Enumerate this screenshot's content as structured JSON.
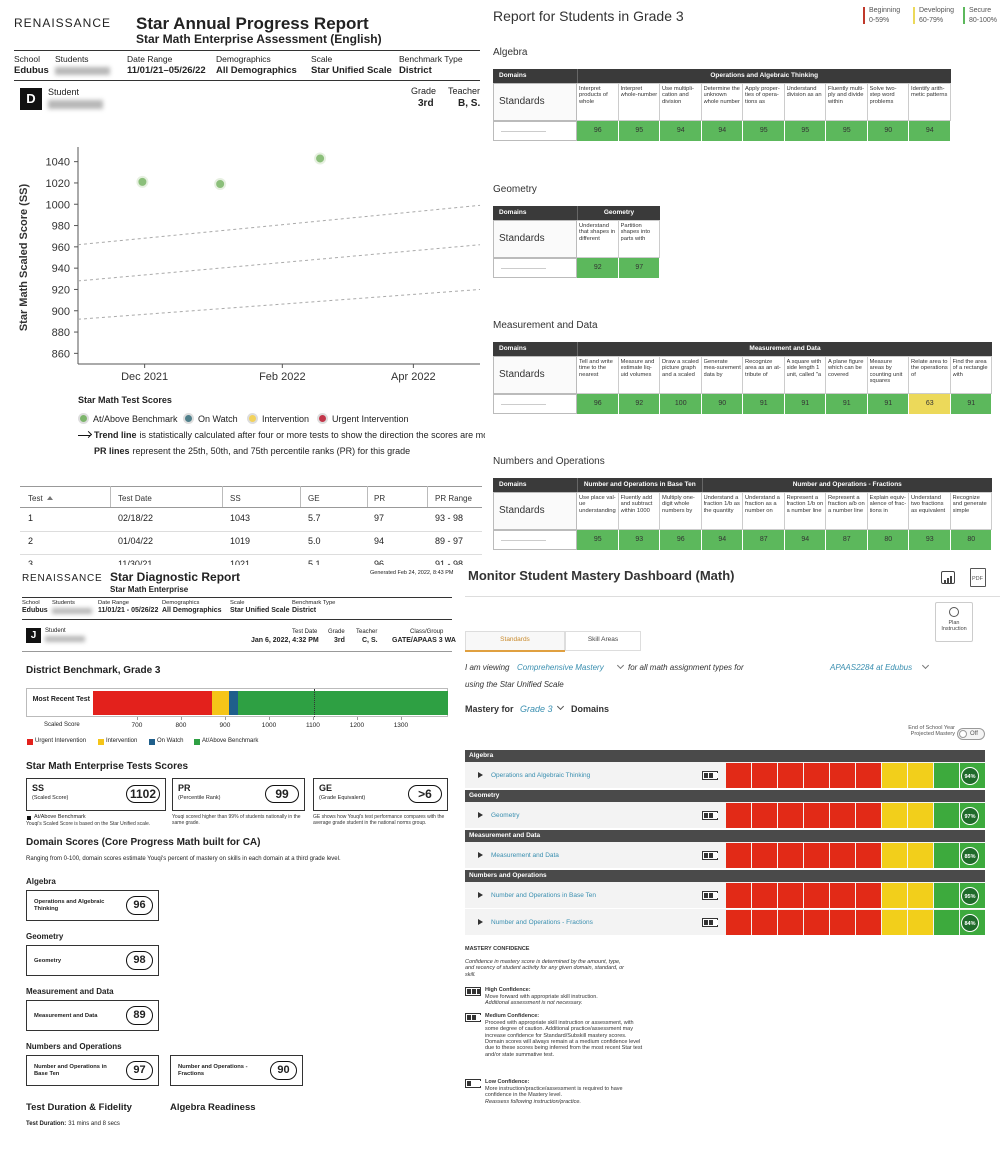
{
  "annual_report": {
    "brand": "RENAISSANCE",
    "title": "Star Annual Progress Report",
    "subtitle": "Star Math Enterprise Assessment (English)",
    "fields": [
      {
        "label": "School",
        "value": "Edubus"
      },
      {
        "label": "Students"
      },
      {
        "label": "Date Range",
        "value": "11/01/21–05/26/22"
      },
      {
        "label": "Demographics",
        "value": "All Demographics"
      },
      {
        "label": "Scale",
        "value": "Star Unified Scale"
      },
      {
        "label": "Benchmark Type",
        "value": "District"
      }
    ],
    "badge": "D",
    "student_label": "Student",
    "grade_label": "Grade",
    "grade": "3rd",
    "teacher_label": "Teacher",
    "teacher": "B, S.",
    "legend_title": "Star Math Test Scores",
    "legend": [
      {
        "label": "At/Above Benchmark",
        "color": "#7db56c"
      },
      {
        "label": "On Watch",
        "color": "#4f7f8a"
      },
      {
        "label": "Intervention",
        "color": "#f2d25c"
      },
      {
        "label": "Urgent Intervention",
        "color": "#c2364a"
      }
    ],
    "trend_note": {
      "bold": "Trend line",
      "text": "is statistically calculated after four or more tests to show the direction the scores are movi"
    },
    "pr_note": {
      "bold": "PR lines",
      "text": "represent the 25th, 50th, and 75th percentile ranks (PR) for this grade"
    },
    "table": {
      "headers": [
        "Test",
        "Test Date",
        "SS",
        "GE",
        "PR",
        "PR Range"
      ],
      "rows": [
        [
          "1",
          "02/18/22",
          "1043",
          "5.7",
          "97",
          "93 - 98"
        ],
        [
          "2",
          "01/04/22",
          "1019",
          "5.0",
          "94",
          "89 - 97"
        ],
        [
          "3",
          "11/30/21",
          "1021",
          "5.1",
          "96",
          "91 - 98"
        ]
      ]
    }
  },
  "chart_data": {
    "type": "scatter",
    "y_label": "Star Math Scaled Score (SS)",
    "x": [
      "2021-11-30",
      "2022-01-04",
      "2022-02-18"
    ],
    "values": [
      1021,
      1019,
      1043
    ],
    "color": "#8bbf7a",
    "xlim": [
      "2021-11",
      "2022-05"
    ],
    "xticks": [
      {
        "value": "2021-12",
        "label": "Dec 2021"
      },
      {
        "value": "2022-02",
        "label": "Feb 2022"
      },
      {
        "value": "2022-04",
        "label": "Apr 2022"
      }
    ],
    "ylim": [
      850,
      1050
    ],
    "yticks": [
      860,
      880,
      900,
      920,
      940,
      960,
      980,
      1000,
      1020,
      1040
    ],
    "pr_lines": [
      {
        "values": [
          892,
          920
        ]
      },
      {
        "values": [
          928,
          962
        ]
      },
      {
        "values": [
          962,
          999
        ]
      }
    ]
  },
  "grade_report": {
    "title": "Report for Students in Grade 3",
    "legend": [
      {
        "label": "Beginning",
        "range": "0-59%",
        "color": "#c0392b"
      },
      {
        "label": "Developing",
        "range": "60-79%",
        "color": "#ecd95a"
      },
      {
        "label": "Secure",
        "range": "80-100%",
        "color": "#5cb85c"
      }
    ],
    "domains_label": "Domains",
    "standards_label": "Standards",
    "sections": [
      {
        "title": "Algebra",
        "groups": [
          {
            "name": "Operations and Algebraic Thinking",
            "standards": [
              "Interpret products of whole",
              "Interpret whole-number",
              "Use multipli-cation and division",
              "Determine the unknown whole number",
              "Apply proper-ties of opera-tions as",
              "Understand division as an",
              "Fluently multi-ply and divide within",
              "Solve two-step word problems",
              "Identify arith-metic patterns"
            ],
            "scores": [
              96,
              95,
              94,
              94,
              95,
              95,
              95,
              90,
              94
            ]
          }
        ]
      },
      {
        "title": "Geometry",
        "groups": [
          {
            "name": "Geometry",
            "standards": [
              "Understand that shapes in different",
              "Partition shapes into parts with"
            ],
            "scores": [
              92,
              97
            ]
          }
        ]
      },
      {
        "title": "Measurement and Data",
        "groups": [
          {
            "name": "Measurement and Data",
            "standards": [
              "Tell and write time to the nearest",
              "Measure and estimate liq-uid volumes",
              "Draw a scaled picture graph and a scaled",
              "Generate mea-surement data by",
              "Recognize area as an at-tribute of",
              "A square with side length 1 unit, called \"a",
              "A plane figure which can be covered",
              "Measure areas by counting unit squares",
              "Relate area to the operations of",
              "Find the area of a rectangle with"
            ],
            "scores": [
              96,
              92,
              100,
              90,
              91,
              91,
              91,
              91,
              63,
              91
            ]
          }
        ]
      },
      {
        "title": "Numbers and Operations",
        "groups": [
          {
            "name": "Number and Operations in Base Ten",
            "standards": [
              "Use place val-ue understanding",
              "Fluently add and subtract within 1000",
              "Multiply one-digit whole numbers by"
            ],
            "scores": [
              95,
              93,
              96
            ]
          },
          {
            "name": "Number and Operations - Fractions",
            "standards": [
              "Understand a fraction 1/b as the quantity",
              "Understand a fraction as a number on",
              "Represent a fraction 1/b on a number line",
              "Represent a fraction a/b on a number line",
              "Explain equiv-alence of frac-tions in",
              "Understand two fractions as equivalent",
              "Recognize and generate simple"
            ],
            "scores": [
              94,
              87,
              94,
              87,
              80,
              93,
              80
            ]
          }
        ]
      }
    ]
  },
  "diagnostic_report": {
    "brand": "RENAISSANCE",
    "title": "Star Diagnostic Report",
    "subtitle": "Star Math Enterprise",
    "generated": "Generated Feb 24, 2022, 8:43 PM",
    "fields": [
      {
        "label": "School",
        "value": "Edubus"
      },
      {
        "label": "Students"
      },
      {
        "label": "Date Range",
        "value": "11/01/21 - 05/26/22"
      },
      {
        "label": "Demographics",
        "value": "All Demographics"
      },
      {
        "label": "Scale",
        "value": "Star Unified Scale"
      },
      {
        "label": "Benchmark Type",
        "value": "District"
      }
    ],
    "badge": "J",
    "student_label": "Student",
    "test_fields": [
      {
        "label": "Test Date",
        "value": "Jan 6, 2022, 4:32 PM"
      },
      {
        "label": "Grade",
        "value": "3rd"
      },
      {
        "label": "Teacher",
        "value": "C, S."
      },
      {
        "label": "Class/Group",
        "value": "GATE/APAAS 3 WA"
      }
    ],
    "benchmark": {
      "title": "District Benchmark, Grade 3",
      "row_label": "Most Recent Test",
      "axis_label": "Scaled Score",
      "xlim": [
        600,
        1407
      ],
      "xticks": [
        700,
        800,
        900,
        1000,
        1100,
        1200,
        1300
      ],
      "bands": [
        {
          "name": "Urgent Intervention",
          "color": "#e3211c",
          "to": 870
        },
        {
          "name": "Intervention",
          "color": "#f5c518",
          "to": 909
        },
        {
          "name": "On Watch",
          "color": "#1f5f8b",
          "to": 930
        },
        {
          "name": "At/Above Benchmark",
          "color": "#2ea043",
          "to": 1407
        }
      ]
    },
    "scores_title": "Star Math Enterprise Tests Scores",
    "scores": [
      {
        "label": "SS",
        "sublabel": "(Scaled Score)",
        "value": 1102,
        "status": "At/Above Benchmark",
        "note": "Youqi's Scaled Score is based on the Star Unified scale."
      },
      {
        "label": "PR",
        "sublabel": "(Percentile Rank)",
        "value": 99,
        "note": "Youqi scored higher than 99% of students nationally in the same grade."
      },
      {
        "label": "GE",
        "sublabel": "(Grade Equivalent)",
        "value": ">6",
        "note": "GE shows how Youqi's test performance compares with the average grade student in the national norms group."
      }
    ],
    "domain_title": "Domain Scores (Core Progress Math built for CA)",
    "domain_intro": "Ranging from 0-100, domain scores estimate Youqi's percent of mastery on skills in each domain at a third grade level.",
    "domains": [
      {
        "title": "Algebra",
        "items": [
          {
            "name": "Operations and Algebraic Thinking",
            "score": 96
          }
        ]
      },
      {
        "title": "Geometry",
        "items": [
          {
            "name": "Geometry",
            "score": 98
          }
        ]
      },
      {
        "title": "Measurement and Data",
        "items": [
          {
            "name": "Measurement and Data",
            "score": 89
          }
        ]
      },
      {
        "title": "Numbers and Operations",
        "items": [
          {
            "name": "Number and Operations in Base Ten",
            "score": 97
          },
          {
            "name": "Number and Operations - Fractions",
            "score": 90
          }
        ]
      }
    ],
    "duration_title": "Test Duration & Fidelity",
    "readiness_title": "Algebra Readiness",
    "duration_label": "Test Duration:",
    "duration": "31 mins and 8 secs"
  },
  "mastery_dashboard": {
    "title": "Monitor Student Mastery Dashboard (Math)",
    "pdf_label": "PDF",
    "plan_button": "Plan Instruction",
    "tabs": [
      "Standards",
      "Skill Areas"
    ],
    "viewing": {
      "prefix": "I am viewing",
      "mastery_type": "Comprehensive Mastery",
      "middle": "for all math assignment types for",
      "class": "APAAS2284 at Edubus",
      "suffix": "using the Star Unified Scale"
    },
    "mastery_for": "Mastery for",
    "grade": "Grade 3",
    "domains_label": "Domains",
    "projection_label": "End of School Year Projected Mastery",
    "toggle": "Off",
    "groups": [
      {
        "name": "Algebra",
        "rows": [
          {
            "name": "Operations and Algebraic Thinking",
            "mastery": 94,
            "mastery_label": "94%"
          }
        ]
      },
      {
        "name": "Geometry",
        "rows": [
          {
            "name": "Geometry",
            "mastery": 97,
            "mastery_label": "97%"
          }
        ]
      },
      {
        "name": "Measurement and Data",
        "rows": [
          {
            "name": "Measurement and Data",
            "mastery": 85,
            "mastery_label": "85%"
          }
        ]
      },
      {
        "name": "Numbers and Operations",
        "rows": [
          {
            "name": "Number and Operations in Base Ten",
            "mastery": 95,
            "mastery_label": "95%"
          },
          {
            "name": "Number and Operations - Fractions",
            "mastery": 84,
            "mastery_label": "84%"
          }
        ]
      }
    ],
    "confidence": {
      "title": "MASTERY CONFIDENCE",
      "intro": "Confidence in mastery score is determined by the amount, type, and recency of student activity for any given domain, standard, or skill.",
      "levels": [
        {
          "label": "High Confidence:",
          "text": "Move forward with appropriate skill instruction.",
          "note": "Additional assessment is not necessary."
        },
        {
          "label": "Medium Confidence:",
          "text": "Proceed with appropriate skill instruction or assessment, with some degree of caution. Additional practice/assessment may increase confidence for Standard/Subskill mastery scores. Domain scores will always remain at a medium confidence level due to these scores being inferred from the most recent Star test and/or state summative test."
        },
        {
          "label": "Low Confidence:",
          "text": "More instruction/practice/assessment is required to have confidence in the Mastery level.",
          "note": "Reassess following instruction/practice."
        }
      ]
    }
  }
}
